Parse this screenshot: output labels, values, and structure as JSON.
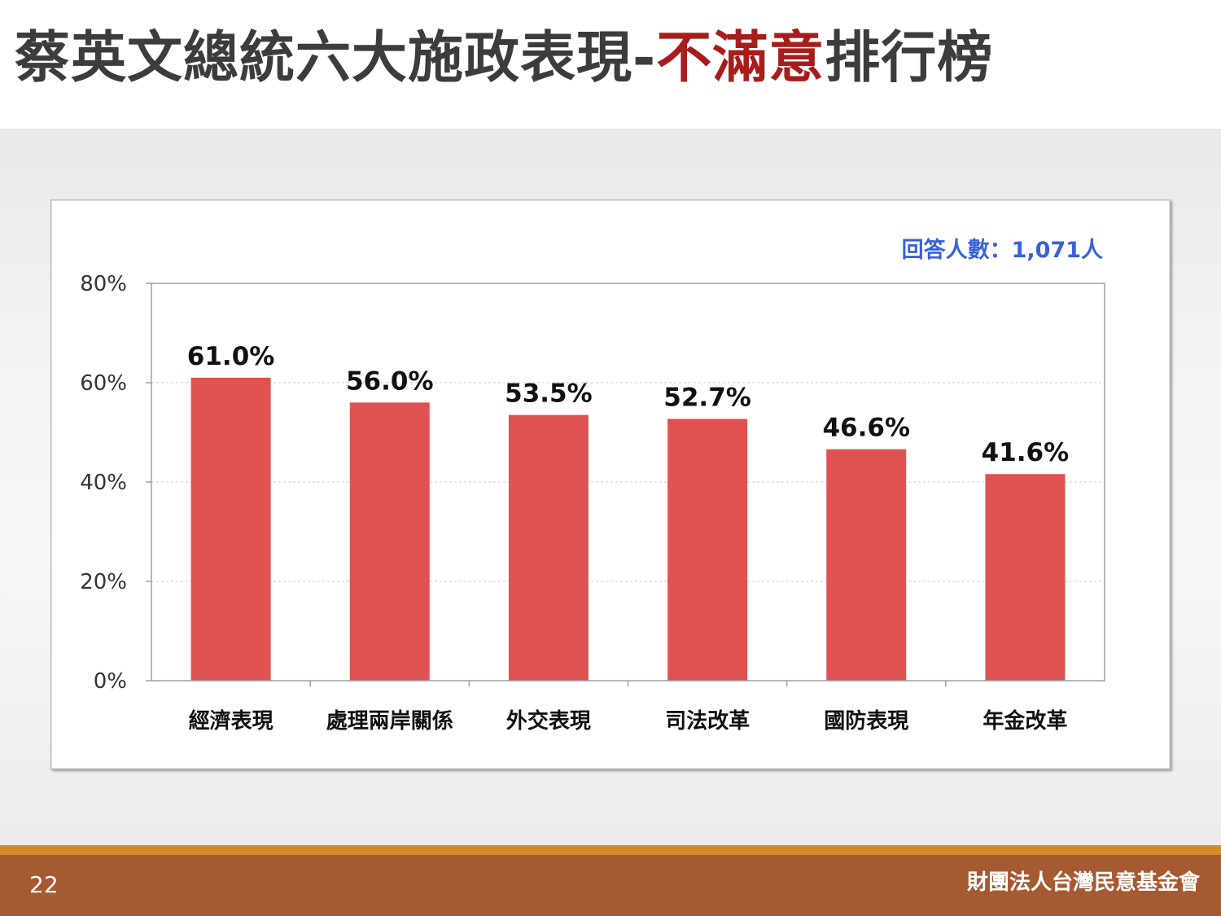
{
  "slide": {
    "title_main": "蔡英文總統六大施政表現-",
    "title_highlight": "不滿意",
    "title_tail": "排行榜",
    "page_number": "22",
    "organization": "財團法人台灣民意基金會"
  },
  "colors": {
    "bar": "#e05252",
    "highlight": "#a81c1c",
    "note": "#3a62d8",
    "footer": "#a65a32",
    "footer_line": "#d68b2a"
  },
  "chart_data": {
    "type": "bar",
    "categories": [
      "經濟表現",
      "處理兩岸關係",
      "外交表現",
      "司法改革",
      "國防表現",
      "年金改革"
    ],
    "values": [
      61.0,
      56.0,
      53.5,
      52.7,
      46.6,
      41.6
    ],
    "data_labels": [
      "61.0%",
      "56.0%",
      "53.5%",
      "52.7%",
      "46.6%",
      "41.6%"
    ],
    "y_ticks": [
      "0%",
      "20%",
      "40%",
      "60%",
      "80%"
    ],
    "ylim": [
      0,
      80
    ],
    "grid": true,
    "note": "回答人數：1,071人"
  }
}
